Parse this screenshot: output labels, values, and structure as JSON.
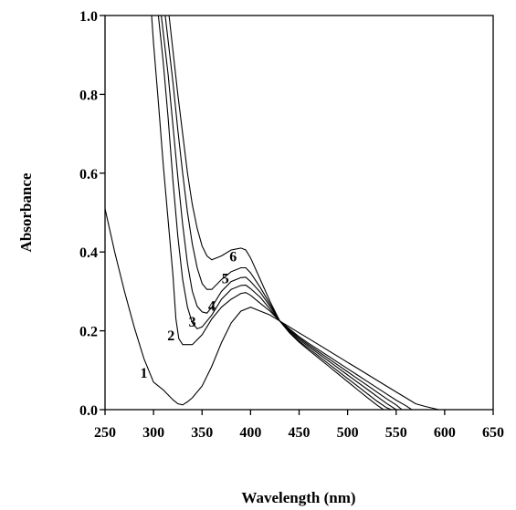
{
  "chart_data": {
    "type": "line",
    "title": "",
    "xlabel": "Wavelength (nm)",
    "ylabel": "Absorbance",
    "xlim": [
      250,
      650
    ],
    "ylim": [
      0.0,
      1.0
    ],
    "x_ticks": [
      "250",
      "300",
      "350",
      "400",
      "450",
      "500",
      "550",
      "600",
      "650"
    ],
    "y_ticks": [
      "0.0",
      "0.2",
      "0.4",
      "0.6",
      "0.8",
      "1.0"
    ],
    "grid": false,
    "legend": "none",
    "series": [
      {
        "name": "1",
        "points": [
          [
            250,
            0.51
          ],
          [
            260,
            0.4
          ],
          [
            270,
            0.3
          ],
          [
            280,
            0.21
          ],
          [
            290,
            0.13
          ],
          [
            300,
            0.07
          ],
          [
            310,
            0.05
          ],
          [
            320,
            0.025
          ],
          [
            325,
            0.015
          ],
          [
            330,
            0.012
          ],
          [
            335,
            0.02
          ],
          [
            340,
            0.03
          ],
          [
            350,
            0.06
          ],
          [
            360,
            0.11
          ],
          [
            370,
            0.17
          ],
          [
            380,
            0.22
          ],
          [
            390,
            0.25
          ],
          [
            400,
            0.26
          ],
          [
            410,
            0.25
          ],
          [
            420,
            0.24
          ],
          [
            430,
            0.225
          ],
          [
            440,
            0.21
          ],
          [
            450,
            0.195
          ],
          [
            460,
            0.18
          ],
          [
            470,
            0.165
          ],
          [
            480,
            0.15
          ],
          [
            490,
            0.135
          ],
          [
            500,
            0.12
          ],
          [
            510,
            0.105
          ],
          [
            520,
            0.09
          ],
          [
            530,
            0.075
          ],
          [
            540,
            0.06
          ],
          [
            550,
            0.045
          ],
          [
            560,
            0.03
          ],
          [
            570,
            0.015
          ],
          [
            580,
            0.008
          ],
          [
            594,
            0.0
          ]
        ]
      },
      {
        "name": "2",
        "points": [
          [
            298,
            1.0
          ],
          [
            300,
            0.93
          ],
          [
            305,
            0.78
          ],
          [
            310,
            0.62
          ],
          [
            315,
            0.48
          ],
          [
            320,
            0.34
          ],
          [
            323,
            0.23
          ],
          [
            326,
            0.18
          ],
          [
            330,
            0.165
          ],
          [
            340,
            0.165
          ],
          [
            350,
            0.19
          ],
          [
            360,
            0.23
          ],
          [
            370,
            0.26
          ],
          [
            380,
            0.28
          ],
          [
            390,
            0.295
          ],
          [
            395,
            0.297
          ],
          [
            400,
            0.29
          ],
          [
            410,
            0.27
          ],
          [
            420,
            0.25
          ],
          [
            430,
            0.225
          ],
          [
            440,
            0.205
          ],
          [
            450,
            0.185
          ],
          [
            460,
            0.168
          ],
          [
            470,
            0.152
          ],
          [
            480,
            0.136
          ],
          [
            490,
            0.12
          ],
          [
            500,
            0.104
          ],
          [
            510,
            0.088
          ],
          [
            520,
            0.072
          ],
          [
            530,
            0.056
          ],
          [
            540,
            0.04
          ],
          [
            550,
            0.024
          ],
          [
            560,
            0.01
          ],
          [
            566,
            0.0
          ]
        ]
      },
      {
        "name": "3",
        "points": [
          [
            305,
            1.0
          ],
          [
            310,
            0.88
          ],
          [
            315,
            0.74
          ],
          [
            320,
            0.58
          ],
          [
            325,
            0.44
          ],
          [
            330,
            0.33
          ],
          [
            335,
            0.26
          ],
          [
            340,
            0.22
          ],
          [
            345,
            0.205
          ],
          [
            350,
            0.21
          ],
          [
            360,
            0.24
          ],
          [
            370,
            0.28
          ],
          [
            380,
            0.305
          ],
          [
            390,
            0.315
          ],
          [
            395,
            0.316
          ],
          [
            400,
            0.307
          ],
          [
            410,
            0.285
          ],
          [
            420,
            0.255
          ],
          [
            430,
            0.225
          ],
          [
            440,
            0.202
          ],
          [
            450,
            0.182
          ],
          [
            460,
            0.164
          ],
          [
            470,
            0.147
          ],
          [
            480,
            0.13
          ],
          [
            490,
            0.113
          ],
          [
            500,
            0.096
          ],
          [
            510,
            0.079
          ],
          [
            520,
            0.062
          ],
          [
            530,
            0.045
          ],
          [
            540,
            0.028
          ],
          [
            550,
            0.012
          ],
          [
            556,
            0.0
          ]
        ]
      },
      {
        "name": "4",
        "points": [
          [
            308,
            1.0
          ],
          [
            315,
            0.85
          ],
          [
            320,
            0.72
          ],
          [
            325,
            0.59
          ],
          [
            330,
            0.47
          ],
          [
            335,
            0.37
          ],
          [
            340,
            0.3
          ],
          [
            345,
            0.262
          ],
          [
            350,
            0.248
          ],
          [
            355,
            0.245
          ],
          [
            360,
            0.26
          ],
          [
            370,
            0.3
          ],
          [
            380,
            0.325
          ],
          [
            390,
            0.335
          ],
          [
            395,
            0.336
          ],
          [
            400,
            0.325
          ],
          [
            410,
            0.298
          ],
          [
            420,
            0.262
          ],
          [
            430,
            0.225
          ],
          [
            440,
            0.2
          ],
          [
            450,
            0.178
          ],
          [
            460,
            0.16
          ],
          [
            470,
            0.142
          ],
          [
            480,
            0.124
          ],
          [
            490,
            0.106
          ],
          [
            500,
            0.088
          ],
          [
            510,
            0.07
          ],
          [
            520,
            0.052
          ],
          [
            530,
            0.034
          ],
          [
            540,
            0.016
          ],
          [
            550,
            0.0
          ]
        ]
      },
      {
        "name": "5",
        "points": [
          [
            312,
            1.0
          ],
          [
            320,
            0.83
          ],
          [
            325,
            0.71
          ],
          [
            330,
            0.6
          ],
          [
            335,
            0.5
          ],
          [
            340,
            0.42
          ],
          [
            345,
            0.36
          ],
          [
            350,
            0.32
          ],
          [
            355,
            0.305
          ],
          [
            360,
            0.305
          ],
          [
            370,
            0.33
          ],
          [
            380,
            0.35
          ],
          [
            390,
            0.36
          ],
          [
            395,
            0.36
          ],
          [
            400,
            0.347
          ],
          [
            410,
            0.31
          ],
          [
            420,
            0.268
          ],
          [
            430,
            0.225
          ],
          [
            440,
            0.197
          ],
          [
            450,
            0.174
          ],
          [
            460,
            0.155
          ],
          [
            470,
            0.136
          ],
          [
            480,
            0.117
          ],
          [
            490,
            0.098
          ],
          [
            500,
            0.079
          ],
          [
            510,
            0.06
          ],
          [
            520,
            0.041
          ],
          [
            530,
            0.022
          ],
          [
            540,
            0.005
          ],
          [
            545,
            0.0
          ]
        ]
      },
      {
        "name": "6",
        "points": [
          [
            316,
            1.0
          ],
          [
            325,
            0.8
          ],
          [
            330,
            0.7
          ],
          [
            335,
            0.6
          ],
          [
            340,
            0.52
          ],
          [
            345,
            0.46
          ],
          [
            350,
            0.415
          ],
          [
            355,
            0.39
          ],
          [
            360,
            0.38
          ],
          [
            370,
            0.39
          ],
          [
            380,
            0.405
          ],
          [
            390,
            0.41
          ],
          [
            395,
            0.405
          ],
          [
            400,
            0.385
          ],
          [
            410,
            0.33
          ],
          [
            420,
            0.275
          ],
          [
            430,
            0.225
          ],
          [
            440,
            0.195
          ],
          [
            450,
            0.171
          ],
          [
            460,
            0.151
          ],
          [
            470,
            0.131
          ],
          [
            480,
            0.111
          ],
          [
            490,
            0.091
          ],
          [
            500,
            0.071
          ],
          [
            510,
            0.051
          ],
          [
            520,
            0.031
          ],
          [
            530,
            0.012
          ],
          [
            537,
            0.0
          ]
        ]
      }
    ],
    "annotations": [
      {
        "text": "1",
        "x": 290,
        "y": 0.095
      },
      {
        "text": "2",
        "x": 318,
        "y": 0.19
      },
      {
        "text": "3",
        "x": 340,
        "y": 0.225
      },
      {
        "text": "4",
        "x": 360,
        "y": 0.265
      },
      {
        "text": "5",
        "x": 374,
        "y": 0.335
      },
      {
        "text": "6",
        "x": 382,
        "y": 0.39
      }
    ]
  }
}
